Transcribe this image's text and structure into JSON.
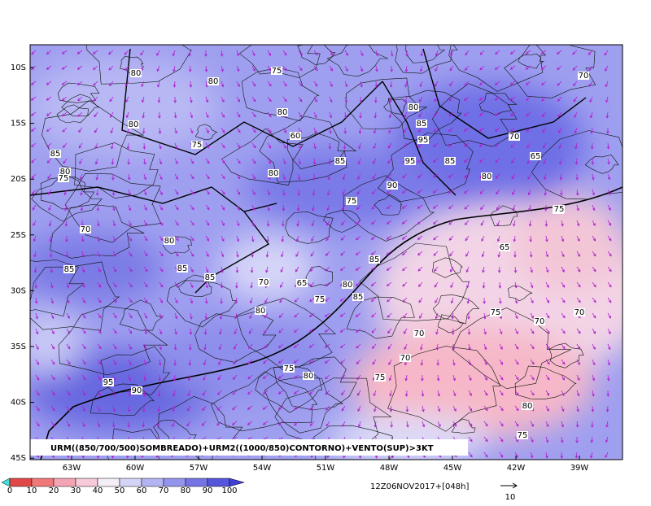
{
  "map": {
    "caption": "URM((850/700/500)SOMBREADO)+URM2((1000/850)CONTORNO)+VENTO(SUP)>3KT",
    "lat_labels": [
      "10S",
      "15S",
      "20S",
      "25S",
      "30S",
      "35S",
      "40S",
      "45S"
    ],
    "lon_labels": [
      "63W",
      "60W",
      "57W",
      "54W",
      "51W",
      "48W",
      "45W",
      "42W",
      "39W"
    ],
    "colorbar_labels": [
      "0",
      "10",
      "20",
      "30",
      "40",
      "50",
      "60",
      "70",
      "80",
      "90",
      "100"
    ],
    "valid_time": "12Z06NOV2017+[048h]",
    "vector_scale": "10",
    "contour_labels": [
      "80",
      "75",
      "80",
      "80",
      "80",
      "75",
      "60",
      "85",
      "80",
      "75",
      "85",
      "95",
      "85",
      "80",
      "75",
      "90",
      "85",
      "80",
      "70",
      "70",
      "80",
      "85",
      "85",
      "85",
      "80",
      "70",
      "65",
      "75",
      "80",
      "95",
      "70",
      "65",
      "80",
      "75",
      "70",
      "70",
      "85",
      "95",
      "90",
      "75",
      "80",
      "75",
      "80",
      "80",
      "75",
      "70",
      "65",
      "70",
      "85",
      "75"
    ]
  }
}
